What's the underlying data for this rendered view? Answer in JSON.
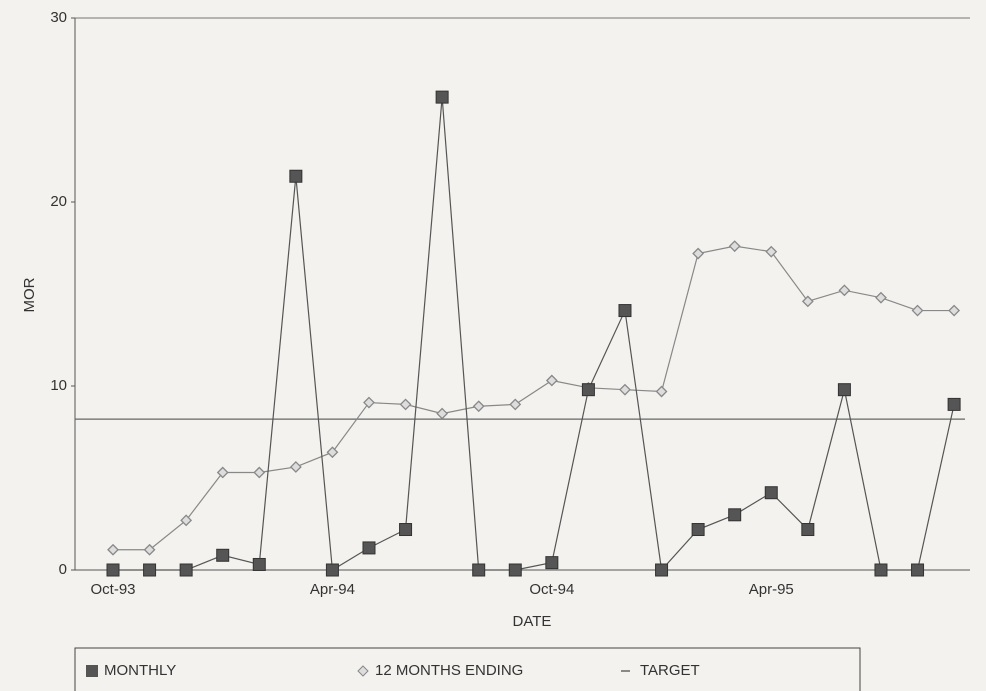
{
  "chart_data": {
    "type": "line",
    "x_label": "DATE",
    "y_label": "MOR",
    "categories": [
      "Oct-93",
      null,
      null,
      null,
      null,
      null,
      "Apr-94",
      null,
      null,
      null,
      null,
      null,
      "Oct-94",
      null,
      null,
      null,
      null,
      null,
      "Apr-95",
      null,
      null,
      null,
      null,
      null
    ],
    "series": [
      {
        "name": "MONTHLY",
        "color": "#555555",
        "marker": "square",
        "values": [
          0,
          0,
          0,
          0.8,
          0.3,
          21.4,
          0,
          1.2,
          2.2,
          25.7,
          0,
          0,
          0.4,
          9.8,
          14.1,
          0,
          2.2,
          3.0,
          4.2,
          2.2,
          9.8,
          0,
          0,
          9.0
        ]
      },
      {
        "name": "12 MONTHS ENDING",
        "color": "#888888",
        "marker": "diamond",
        "values": [
          1.1,
          1.1,
          2.7,
          5.3,
          5.3,
          5.6,
          6.4,
          9.1,
          9.0,
          8.5,
          8.9,
          9.0,
          10.3,
          9.9,
          9.8,
          9.7,
          17.2,
          17.6,
          17.3,
          14.6,
          15.2,
          14.8,
          14.1,
          14.1
        ]
      }
    ],
    "target": {
      "name": "TARGET",
      "value": 8.2,
      "color": "#666666"
    },
    "ylim": [
      0,
      30
    ],
    "yticks": [
      0,
      10,
      20,
      30
    ]
  }
}
